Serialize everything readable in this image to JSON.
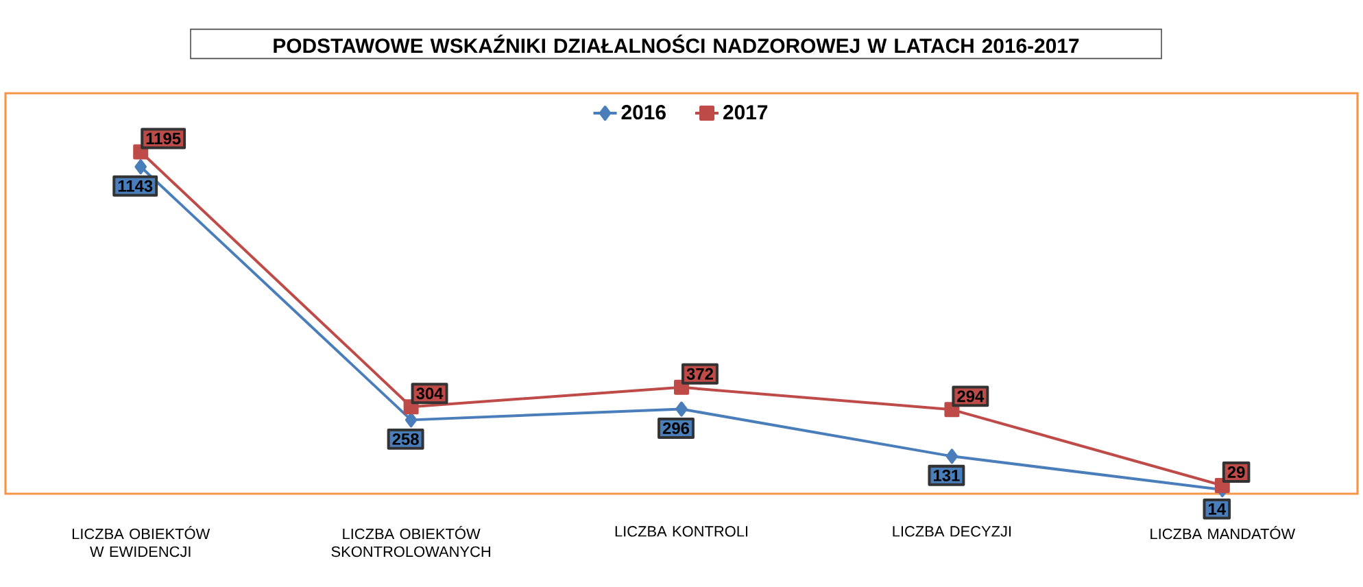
{
  "chart_data": {
    "type": "line",
    "title": "PODSTAWOWE WSKAŹNIKI DZIAŁALNOŚCI NADZOROWEJ W LATACH 2016-2017",
    "categories": [
      "LICZBA OBIEKTÓW W EWIDENCJI",
      "LICZBA OBIEKTÓW SKONTROLOWANYCH",
      "LICZBA KONTROLI",
      "LICZBA DECYZJI",
      "LICZBA MANDATÓW"
    ],
    "series": [
      {
        "name": "2016",
        "color": "#4a7ebb",
        "marker": "diamond",
        "values": [
          1143,
          258,
          296,
          131,
          14
        ]
      },
      {
        "name": "2017",
        "color": "#be4b48",
        "marker": "square",
        "values": [
          1195,
          304,
          372,
          294,
          29
        ]
      }
    ],
    "ylim": [
      0,
      1400
    ],
    "tick_labels": "x",
    "grid": false,
    "legend": "top",
    "data_labels": true
  }
}
